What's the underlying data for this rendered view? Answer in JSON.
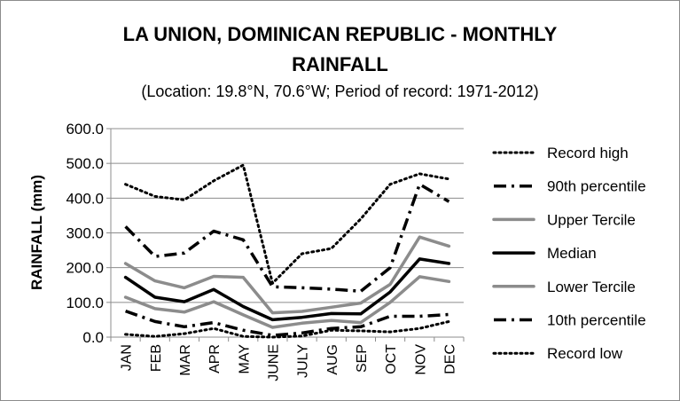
{
  "chart_data": {
    "type": "line",
    "title_line1": "LA UNION, DOMINICAN REPUBLIC - MONTHLY",
    "title_line2": "RAINFALL",
    "subtitle": "(Location: 19.8°N, 70.6°W; Period of record: 1971-2012)",
    "xlabel": "",
    "ylabel": "RAINFALL (mm)",
    "ylim": [
      0,
      600
    ],
    "yticks": [
      "0.0",
      "100.0",
      "200.0",
      "300.0",
      "400.0",
      "500.0",
      "600.0"
    ],
    "categories": [
      "JAN",
      "FEB",
      "MAR",
      "APR",
      "MAY",
      "JUNE",
      "JULY",
      "AUG",
      "SEP",
      "OCT",
      "NOV",
      "DEC"
    ],
    "grid": "horizontal",
    "legend_position": "right",
    "series": [
      {
        "name": "Record high",
        "color": "#000000",
        "style": "dotted",
        "values": [
          440,
          405,
          395,
          450,
          495,
          155,
          240,
          255,
          340,
          440,
          470,
          455
        ]
      },
      {
        "name": "90th percentile",
        "color": "#000000",
        "style": "dashdot",
        "values": [
          318,
          232,
          242,
          305,
          280,
          145,
          142,
          138,
          132,
          200,
          440,
          390
        ]
      },
      {
        "name": "Upper Tercile",
        "color": "#8c8c8c",
        "style": "solid",
        "values": [
          212,
          162,
          142,
          175,
          172,
          70,
          74,
          86,
          98,
          152,
          288,
          262
        ]
      },
      {
        "name": "Median",
        "color": "#000000",
        "style": "solid",
        "values": [
          172,
          115,
          102,
          137,
          88,
          50,
          57,
          68,
          67,
          130,
          225,
          212
        ]
      },
      {
        "name": "Lower Tercile",
        "color": "#8c8c8c",
        "style": "solid",
        "values": [
          115,
          82,
          72,
          102,
          64,
          28,
          40,
          48,
          42,
          100,
          174,
          160
        ]
      },
      {
        "name": "10th percentile",
        "color": "#000000",
        "style": "dashdot",
        "values": [
          75,
          45,
          30,
          42,
          20,
          5,
          12,
          25,
          30,
          60,
          60,
          65
        ]
      },
      {
        "name": "Record low",
        "color": "#000000",
        "style": "dotted",
        "values": [
          8,
          2,
          10,
          25,
          2,
          0,
          3,
          20,
          18,
          15,
          25,
          45
        ]
      }
    ]
  }
}
